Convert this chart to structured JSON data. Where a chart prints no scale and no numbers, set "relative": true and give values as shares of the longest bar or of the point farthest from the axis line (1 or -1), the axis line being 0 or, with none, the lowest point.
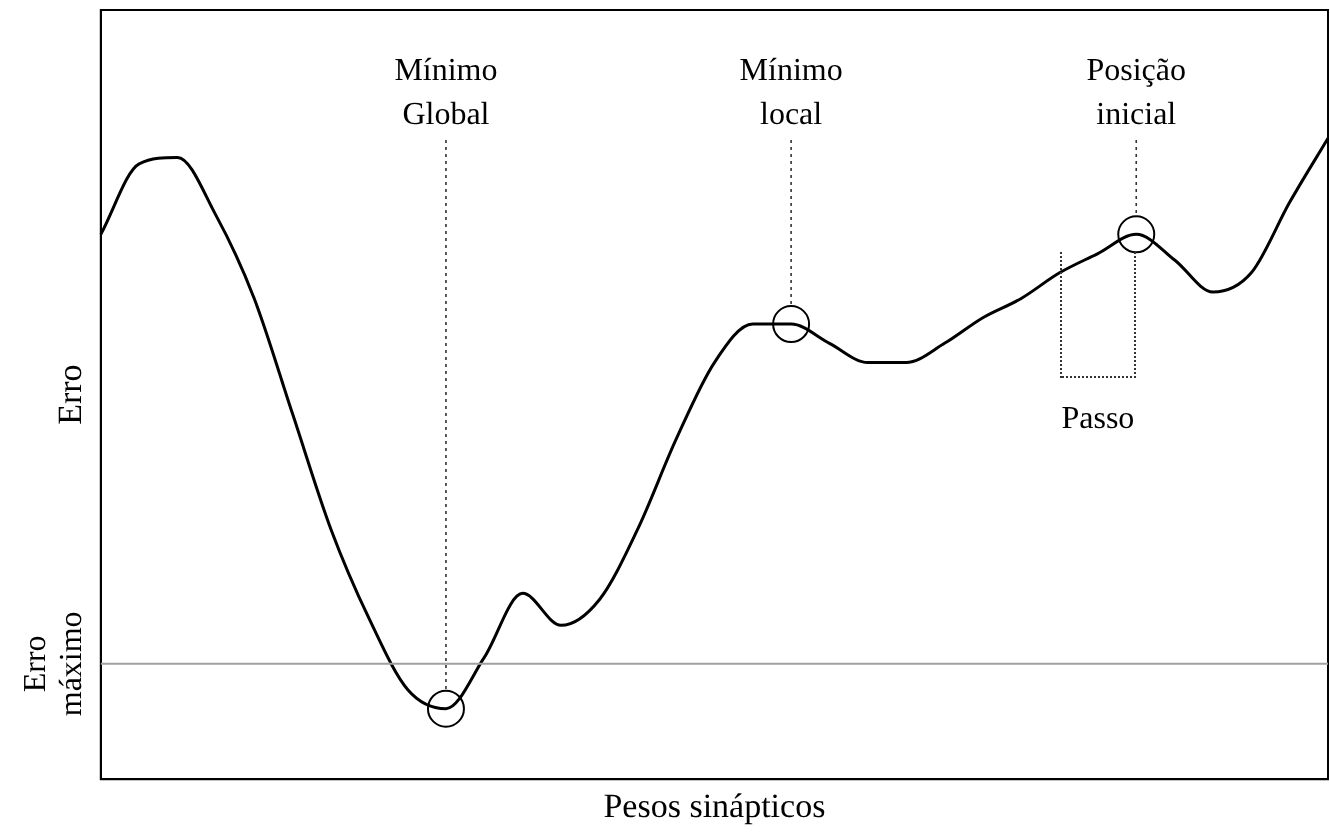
{
  "chart_data": {
    "type": "line",
    "relative": true,
    "xlabel": "Pesos sinápticos",
    "ylabel": "Erro",
    "categories": [
      null,
      null,
      null,
      null,
      null,
      null,
      null,
      null,
      null,
      null,
      null,
      null,
      null,
      null,
      null,
      null,
      null,
      null,
      null,
      null,
      null,
      null,
      null,
      null,
      null,
      null,
      null,
      null,
      null,
      null,
      null,
      null,
      null
    ],
    "series": [
      {
        "color": "#000000",
        "values": [
          0.85,
          0.96,
          0.97,
          0.88,
          0.75,
          0.57,
          0.39,
          0.25,
          0.14,
          0.11,
          0.19,
          0.29,
          0.24,
          0.28,
          0.39,
          0.53,
          0.65,
          0.71,
          0.71,
          0.68,
          0.65,
          0.65,
          0.68,
          0.72,
          0.75,
          0.79,
          0.82,
          0.85,
          0.81,
          0.76,
          0.79,
          0.9,
          1
        ]
      }
    ],
    "ref_lines": [
      {
        "axis": "y",
        "value": 0.18,
        "label": "Erro máximo",
        "color": "#a0a0a0"
      }
    ],
    "annotations": [
      "Mínimo Global",
      "Mínimo local",
      "Posição inicial",
      "Passo"
    ],
    "grid": false,
    "legend": false
  }
}
